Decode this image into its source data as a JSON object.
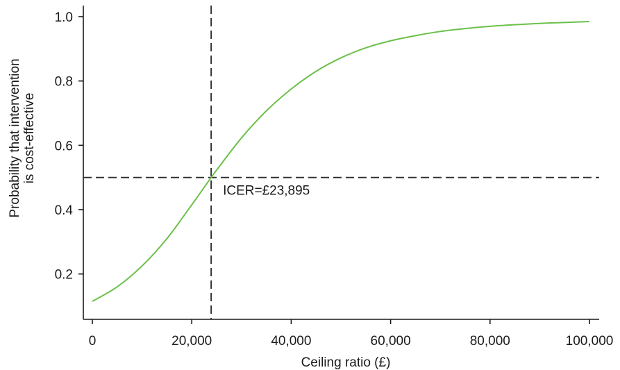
{
  "chart_data": {
    "type": "line",
    "title": "",
    "xlabel": "Ceiling ratio (£)",
    "ylabel": [
      "Probability that intervention",
      "is cost-effective"
    ],
    "xlim": [
      0,
      100000
    ],
    "ylim": [
      0.1,
      1.0
    ],
    "x_ticks": [
      0,
      20000,
      40000,
      60000,
      80000,
      100000
    ],
    "x_tick_labels": [
      "0",
      "20,000",
      "40,000",
      "60,000",
      "80,000",
      "100,000"
    ],
    "y_ticks": [
      0.2,
      0.4,
      0.6,
      0.8,
      1.0
    ],
    "y_tick_labels": [
      "0.2",
      "0.4",
      "0.6",
      "0.8",
      "1.0"
    ],
    "grid": false,
    "colors": {
      "curve": "#6cbf4a",
      "reference": "#2b2b2b",
      "axis": "#1a1a1a"
    },
    "series": [
      {
        "x": [
          0,
          5000,
          10000,
          15000,
          20000,
          23895,
          25000,
          30000,
          35000,
          40000,
          45000,
          50000,
          55000,
          60000,
          65000,
          70000,
          75000,
          80000,
          85000,
          90000,
          95000,
          100000
        ],
        "y": [
          0.115,
          0.16,
          0.225,
          0.31,
          0.415,
          0.5,
          0.523,
          0.623,
          0.707,
          0.775,
          0.83,
          0.872,
          0.903,
          0.925,
          0.941,
          0.954,
          0.963,
          0.97,
          0.975,
          0.979,
          0.982,
          0.985
        ]
      }
    ],
    "reference_lines": {
      "vertical_x": 23895,
      "horizontal_y": 0.5
    },
    "annotation": {
      "text": "ICER=£23,895",
      "x": 23895,
      "y": 0.5
    }
  }
}
